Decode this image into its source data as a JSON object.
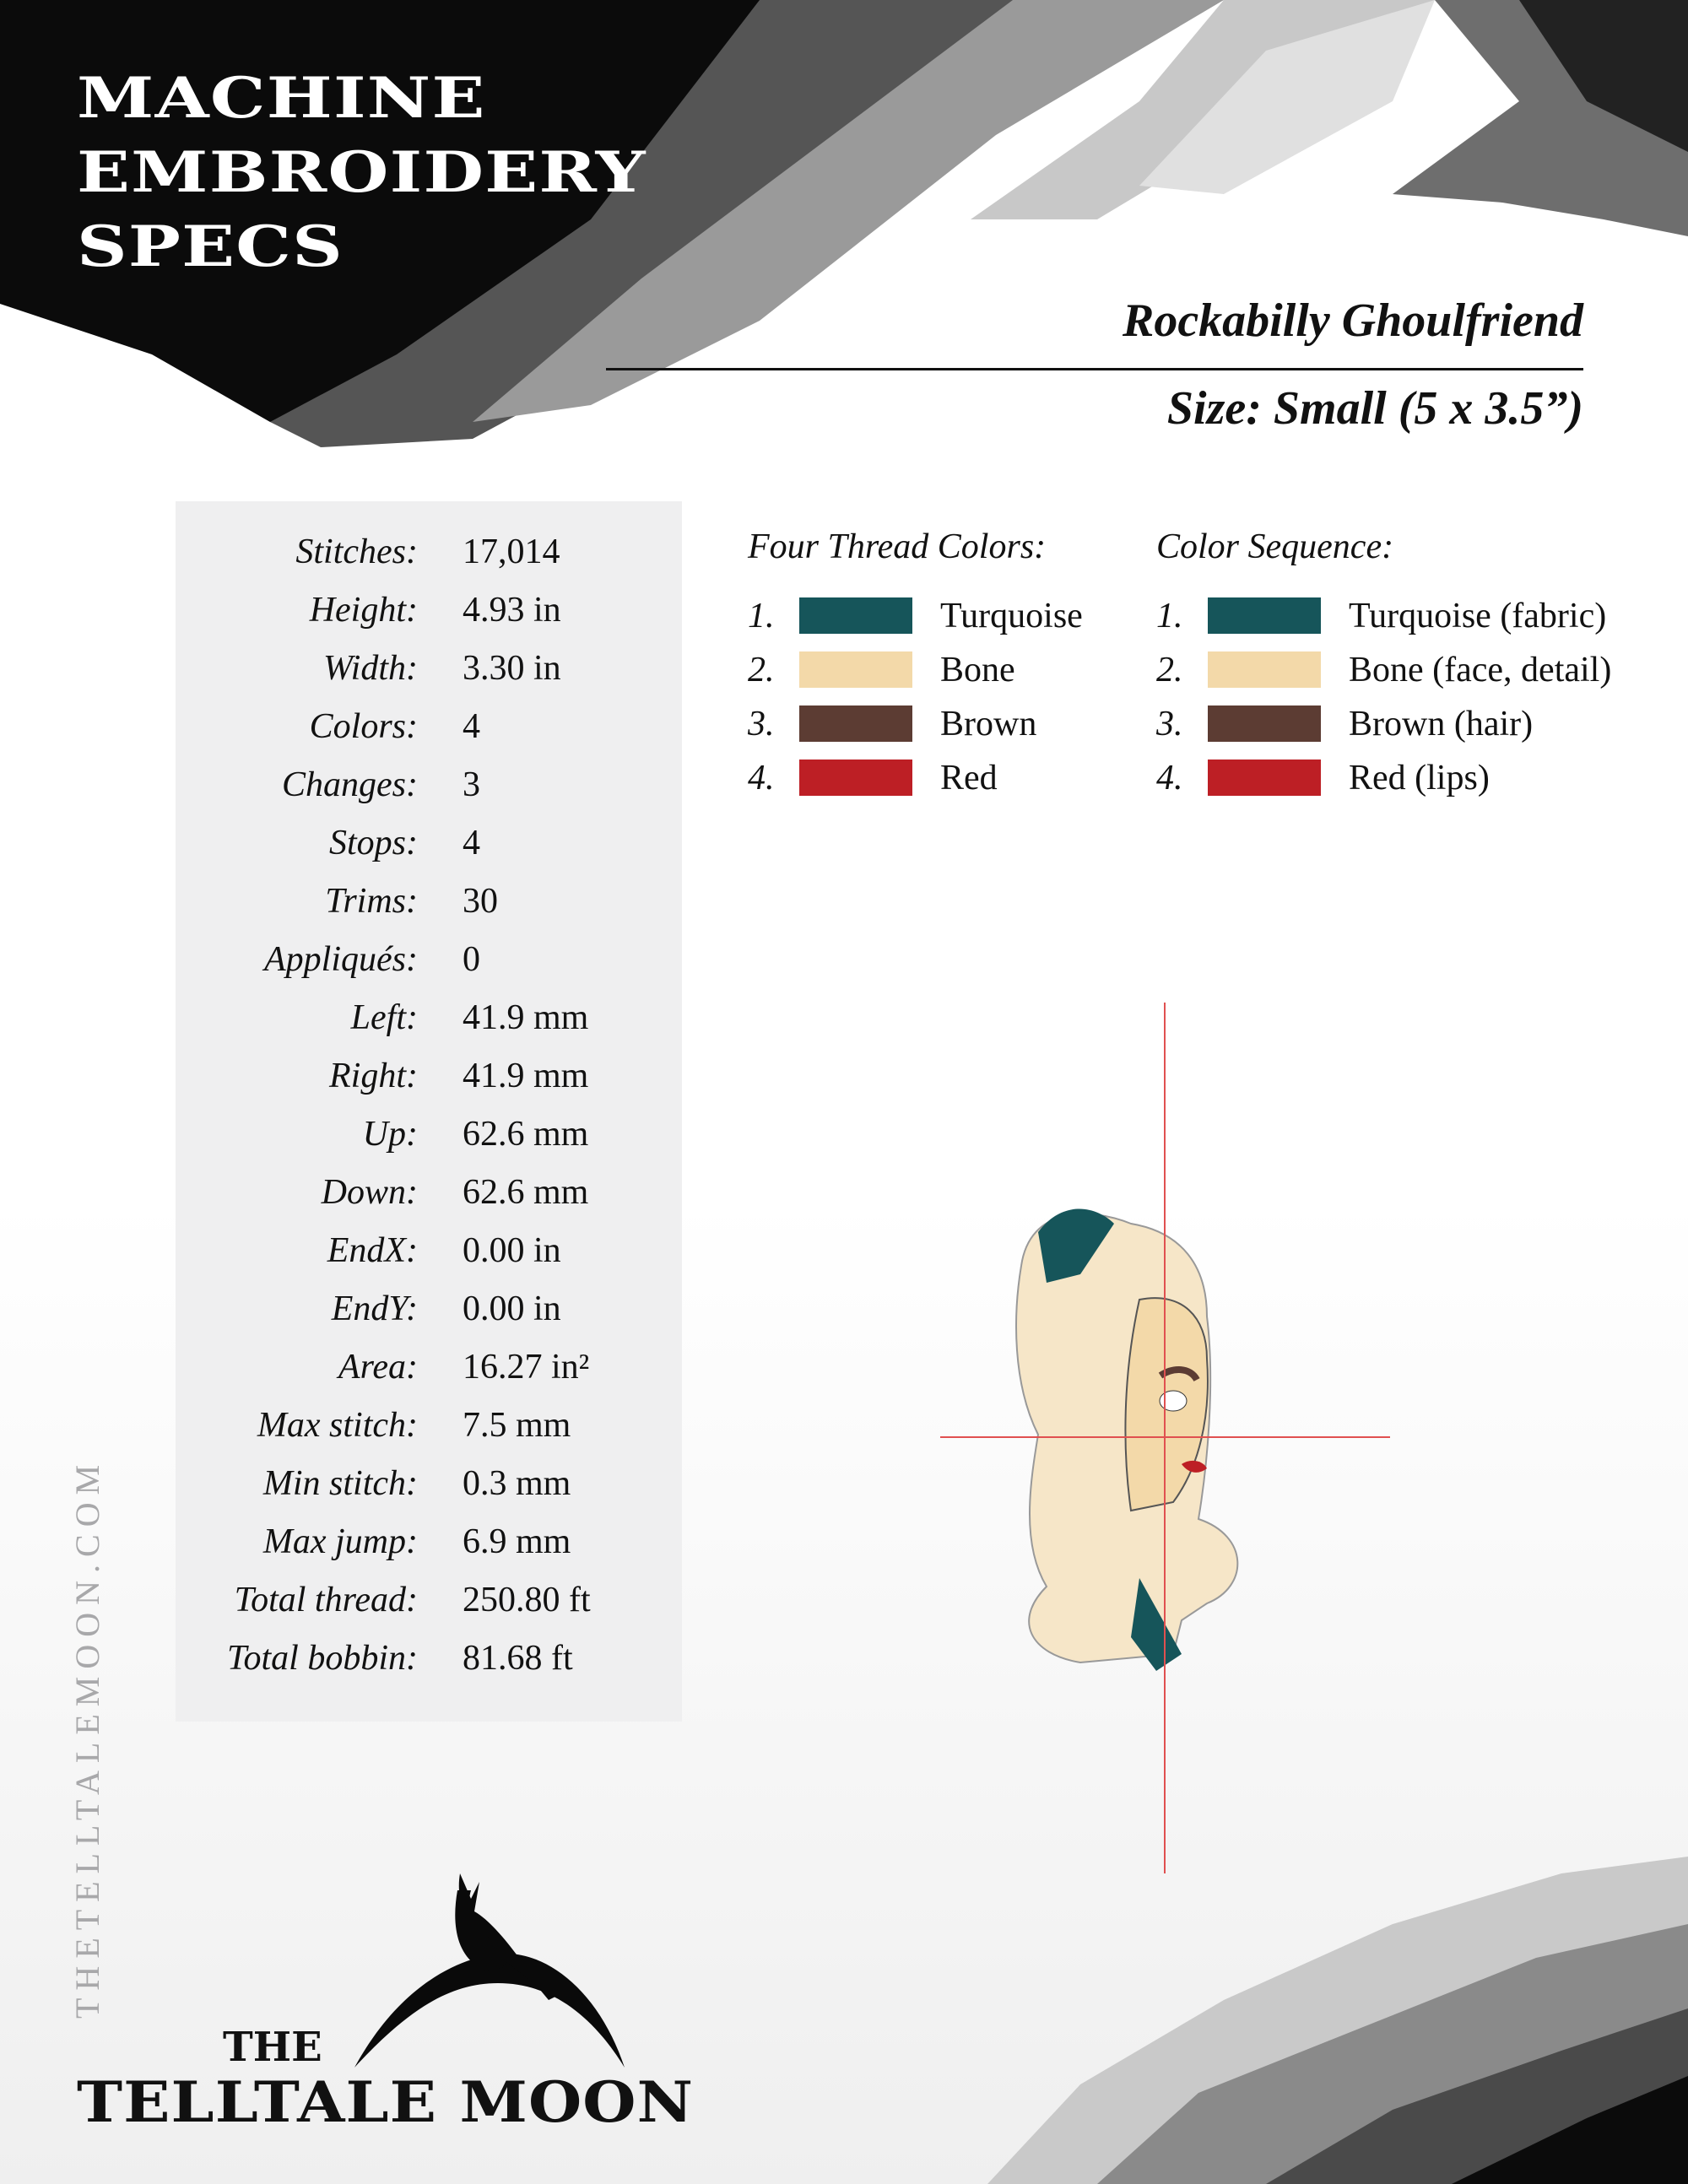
{
  "header": {
    "title_lines": [
      "MACHINE",
      "EMBROIDERY",
      "SPECS"
    ],
    "design_name": "Rockabilly Ghoulfriend",
    "size": "Size: Small (5 x 3.5”)"
  },
  "specs": [
    {
      "label": "Stitches:",
      "value": "17,014"
    },
    {
      "label": "Height:",
      "value": "4.93 in"
    },
    {
      "label": "Width:",
      "value": "3.30 in"
    },
    {
      "label": "Colors:",
      "value": "4"
    },
    {
      "label": "Changes:",
      "value": "3"
    },
    {
      "label": "Stops:",
      "value": "4"
    },
    {
      "label": "Trims:",
      "value": "30"
    },
    {
      "label": "Appliqués:",
      "value": "0"
    },
    {
      "label": "Left:",
      "value": "41.9 mm"
    },
    {
      "label": "Right:",
      "value": "41.9 mm"
    },
    {
      "label": "Up:",
      "value": "62.6 mm"
    },
    {
      "label": "Down:",
      "value": "62.6 mm"
    },
    {
      "label": "EndX:",
      "value": "0.00 in"
    },
    {
      "label": "EndY:",
      "value": "0.00 in"
    },
    {
      "label": "Area:",
      "value": "16.27 in²"
    },
    {
      "label": "Max stitch:",
      "value": "7.5 mm"
    },
    {
      "label": "Min stitch:",
      "value": "0.3 mm"
    },
    {
      "label": "Max jump:",
      "value": "6.9 mm"
    },
    {
      "label": "Total thread:",
      "value": "250.80 ft"
    },
    {
      "label": "Total bobbin:",
      "value": "81.68 ft"
    }
  ],
  "thread_colors": {
    "heading": "Four Thread Colors:",
    "items": [
      {
        "num": "1.",
        "name": "Turquoise",
        "color": "#16555a"
      },
      {
        "num": "2.",
        "name": "Bone",
        "color": "#f3d9a9"
      },
      {
        "num": "3.",
        "name": "Brown",
        "color": "#5c3c33"
      },
      {
        "num": "4.",
        "name": "Red",
        "color": "#bd1f25"
      }
    ]
  },
  "color_sequence": {
    "heading": "Color Sequence:",
    "items": [
      {
        "num": "1.",
        "name": "Turquoise (fabric)",
        "color": "#16555a"
      },
      {
        "num": "2.",
        "name": "Bone (face, detail)",
        "color": "#f3d9a9"
      },
      {
        "num": "3.",
        "name": "Brown (hair)",
        "color": "#5c3c33"
      },
      {
        "num": "4.",
        "name": "Red (lips)",
        "color": "#bd1f25"
      }
    ]
  },
  "footer": {
    "website": "THETELLTALEMOON.COM",
    "logo_the": "THE",
    "logo_name": "TELLTALE MOON"
  }
}
